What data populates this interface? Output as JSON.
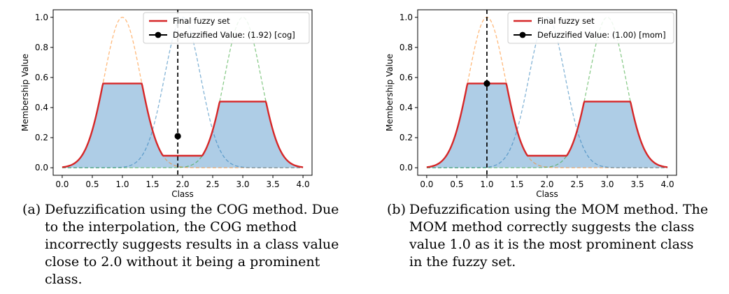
{
  "chart_data": [
    {
      "type": "line",
      "ylabel": "Membership Value",
      "xlabel": "Class",
      "xlim": [
        -0.15,
        4.15
      ],
      "ylim": [
        -0.05,
        1.05
      ],
      "xticks": [
        "0.0",
        "0.5",
        "1.0",
        "1.5",
        "2.0",
        "2.5",
        "3.0",
        "3.5",
        "4.0"
      ],
      "yticks": [
        "0.0",
        "0.2",
        "0.4",
        "0.6",
        "0.8",
        "1.0"
      ],
      "legend_position": "top-right",
      "membership_functions": [
        {
          "center": 1.0,
          "sigma": 0.3,
          "color": "#ff7f0e"
        },
        {
          "center": 2.0,
          "sigma": 0.3,
          "color": "#1f77b4"
        },
        {
          "center": 3.0,
          "sigma": 0.3,
          "color": "#2ca02c"
        }
      ],
      "clip_levels": [
        0.56,
        0.08,
        0.44
      ],
      "series": [
        {
          "name": "Final fuzzy set",
          "color": "#d62728"
        },
        {
          "name": "Defuzzified Value: (1.92) [cog]",
          "color": "#000000",
          "x": 1.92,
          "y": 0.21
        }
      ],
      "fill_color": "#aecde6",
      "caption_tag": "(a)",
      "caption": "Defuzzification using the COG method. Due to the interpolation, the COG method incorrectly suggests results in a class value close to 2.0 without it being a prominent class."
    },
    {
      "type": "line",
      "ylabel": "Membership Value",
      "xlabel": "Class",
      "xlim": [
        -0.15,
        4.15
      ],
      "ylim": [
        -0.05,
        1.05
      ],
      "xticks": [
        "0.0",
        "0.5",
        "1.0",
        "1.5",
        "2.0",
        "2.5",
        "3.0",
        "3.5",
        "4.0"
      ],
      "yticks": [
        "0.0",
        "0.2",
        "0.4",
        "0.6",
        "0.8",
        "1.0"
      ],
      "legend_position": "top-right",
      "membership_functions": [
        {
          "center": 1.0,
          "sigma": 0.3,
          "color": "#ff7f0e"
        },
        {
          "center": 2.0,
          "sigma": 0.3,
          "color": "#1f77b4"
        },
        {
          "center": 3.0,
          "sigma": 0.3,
          "color": "#2ca02c"
        }
      ],
      "clip_levels": [
        0.56,
        0.08,
        0.44
      ],
      "series": [
        {
          "name": "Final fuzzy set",
          "color": "#d62728"
        },
        {
          "name": "Defuzzified Value: (1.00) [mom]",
          "color": "#000000",
          "x": 1.0,
          "y": 0.56
        }
      ],
      "fill_color": "#aecde6",
      "caption_tag": "(b)",
      "caption": "Defuzzification using the MOM method. The MOM method correctly suggests the class value 1.0 as it is the most prominent class in the fuzzy set."
    }
  ]
}
